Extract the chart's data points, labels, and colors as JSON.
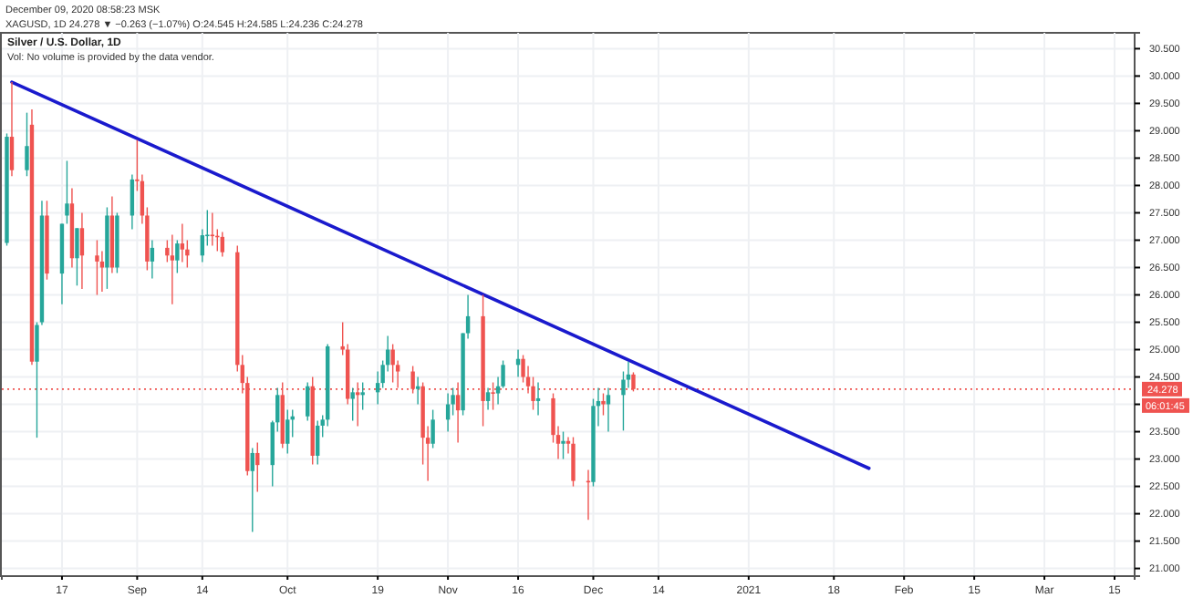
{
  "chart_data": {
    "type": "candlestick",
    "title": "Silver / U.S. Dollar, 1D",
    "subtitle": "Vol: No volume is provided by the data vendor.",
    "annotations": [
      "December 09, 2020 08:58:23 MSK",
      "XAGUSD, 1D 24.278 ▼ −0.263 (−1.07%) O:24.545 H:24.585 L:24.236 C:24.278",
      "06:01:45"
    ],
    "x": [
      "2020-08-06",
      "2020-08-07",
      "2020-08-10",
      "2020-08-11",
      "2020-08-12",
      "2020-08-13",
      "2020-08-14",
      "2020-08-17",
      "2020-08-18",
      "2020-08-19",
      "2020-08-20",
      "2020-08-21",
      "2020-08-24",
      "2020-08-25",
      "2020-08-26",
      "2020-08-27",
      "2020-08-28",
      "2020-08-31",
      "2020-09-01",
      "2020-09-02",
      "2020-09-03",
      "2020-09-04",
      "2020-09-07",
      "2020-09-08",
      "2020-09-09",
      "2020-09-10",
      "2020-09-11",
      "2020-09-14",
      "2020-09-15",
      "2020-09-16",
      "2020-09-17",
      "2020-09-18",
      "2020-09-21",
      "2020-09-22",
      "2020-09-23",
      "2020-09-24",
      "2020-09-25",
      "2020-09-28",
      "2020-09-29",
      "2020-09-30",
      "2020-10-01",
      "2020-10-02",
      "2020-10-05",
      "2020-10-06",
      "2020-10-07",
      "2020-10-08",
      "2020-10-09",
      "2020-10-12",
      "2020-10-13",
      "2020-10-14",
      "2020-10-15",
      "2020-10-16",
      "2020-10-19",
      "2020-10-20",
      "2020-10-21",
      "2020-10-22",
      "2020-10-23",
      "2020-10-26",
      "2020-10-27",
      "2020-10-28",
      "2020-10-29",
      "2020-10-30",
      "2020-11-02",
      "2020-11-03",
      "2020-11-04",
      "2020-11-05",
      "2020-11-06",
      "2020-11-09",
      "2020-11-10",
      "2020-11-11",
      "2020-11-12",
      "2020-11-13",
      "2020-11-16",
      "2020-11-17",
      "2020-11-18",
      "2020-11-19",
      "2020-11-20",
      "2020-11-23",
      "2020-11-24",
      "2020-11-25",
      "2020-11-26",
      "2020-11-27",
      "2020-11-30",
      "2020-12-01",
      "2020-12-02",
      "2020-12-03",
      "2020-12-04",
      "2020-12-07",
      "2020-12-08",
      "2020-12-09"
    ],
    "ohlc": [
      [
        26.95,
        28.95,
        26.9,
        28.89
      ],
      [
        28.89,
        29.89,
        28.17,
        28.28
      ],
      [
        28.28,
        29.33,
        28.17,
        28.72
      ],
      [
        29.11,
        29.39,
        24.72,
        24.78
      ],
      [
        24.78,
        25.5,
        23.39,
        25.45
      ],
      [
        25.5,
        27.72,
        25.45,
        27.45
      ],
      [
        27.45,
        27.72,
        26.28,
        26.39
      ],
      [
        26.39,
        27.3,
        25.83,
        27.3
      ],
      [
        27.45,
        28.45,
        27.3,
        27.67
      ],
      [
        27.67,
        27.95,
        26.5,
        26.67
      ],
      [
        26.67,
        27.22,
        26.17,
        27.22
      ],
      [
        27.22,
        27.5,
        26.11,
        26.72
      ],
      [
        26.72,
        27.0,
        26.0,
        26.61
      ],
      [
        26.61,
        26.8,
        26.06,
        26.5
      ],
      [
        26.5,
        27.6,
        26.11,
        27.45
      ],
      [
        27.45,
        27.8,
        26.4,
        26.5
      ],
      [
        26.5,
        27.5,
        26.4,
        27.45
      ],
      [
        27.45,
        28.2,
        27.2,
        28.11
      ],
      [
        28.11,
        28.83,
        27.9,
        28.08
      ],
      [
        28.08,
        28.2,
        27.3,
        27.45
      ],
      [
        27.45,
        27.6,
        26.45,
        26.61
      ],
      [
        26.61,
        27.0,
        26.3,
        26.86
      ],
      [
        26.86,
        27.0,
        26.6,
        26.72
      ],
      [
        26.72,
        27.1,
        25.83,
        26.63
      ],
      [
        26.63,
        27.0,
        26.4,
        26.94
      ],
      [
        26.94,
        27.3,
        26.6,
        26.83
      ],
      [
        26.83,
        27.0,
        26.5,
        26.72
      ],
      [
        26.72,
        27.2,
        26.6,
        27.09
      ],
      [
        27.09,
        27.55,
        26.9,
        27.1
      ],
      [
        27.1,
        27.5,
        26.9,
        27.08
      ],
      [
        27.08,
        27.2,
        26.8,
        27.06
      ],
      [
        27.06,
        27.15,
        26.7,
        26.78
      ],
      [
        26.78,
        26.9,
        24.6,
        24.72
      ],
      [
        24.72,
        24.9,
        24.2,
        24.39
      ],
      [
        24.39,
        24.5,
        22.7,
        22.78
      ],
      [
        22.78,
        23.2,
        21.67,
        23.11
      ],
      [
        23.11,
        23.3,
        22.4,
        22.89
      ],
      [
        22.89,
        23.7,
        22.5,
        23.67
      ],
      [
        23.67,
        24.3,
        23.5,
        24.17
      ],
      [
        24.17,
        24.4,
        23.2,
        23.28
      ],
      [
        23.28,
        23.9,
        23.1,
        23.72
      ],
      [
        23.72,
        23.9,
        23.4,
        23.78
      ],
      [
        23.78,
        24.4,
        23.7,
        24.33
      ],
      [
        24.33,
        24.5,
        22.9,
        23.06
      ],
      [
        23.06,
        23.7,
        22.9,
        23.61
      ],
      [
        23.61,
        23.8,
        23.4,
        23.72
      ],
      [
        23.72,
        25.1,
        23.6,
        25.06
      ],
      [
        25.06,
        25.5,
        24.9,
        25.0
      ],
      [
        25.0,
        25.1,
        24.0,
        24.1
      ],
      [
        24.1,
        24.3,
        23.7,
        24.22
      ],
      [
        24.22,
        24.4,
        23.6,
        24.17
      ],
      [
        24.17,
        24.4,
        23.9,
        24.22
      ],
      [
        24.22,
        24.6,
        24.0,
        24.39
      ],
      [
        24.39,
        24.8,
        24.3,
        24.72
      ],
      [
        24.72,
        25.25,
        24.6,
        25.0
      ],
      [
        25.0,
        25.1,
        24.4,
        24.72
      ],
      [
        24.72,
        24.8,
        24.3,
        24.6
      ],
      [
        24.6,
        24.7,
        24.2,
        24.28
      ],
      [
        24.28,
        24.5,
        24.0,
        24.33
      ],
      [
        24.33,
        24.4,
        22.9,
        23.39
      ],
      [
        23.39,
        23.6,
        22.6,
        23.28
      ],
      [
        23.28,
        23.9,
        23.2,
        23.72
      ],
      [
        23.72,
        24.2,
        23.5,
        24.0
      ],
      [
        24.0,
        24.3,
        23.8,
        24.17
      ],
      [
        24.17,
        24.4,
        23.3,
        23.89
      ],
      [
        23.89,
        25.3,
        23.8,
        25.3
      ],
      [
        25.3,
        26.0,
        25.2,
        25.61
      ],
      [
        25.61,
        26.0,
        23.6,
        24.06
      ],
      [
        24.06,
        24.3,
        23.9,
        24.22
      ],
      [
        24.22,
        24.4,
        23.9,
        24.2
      ],
      [
        24.2,
        24.5,
        24.0,
        24.33
      ],
      [
        24.33,
        24.8,
        24.3,
        24.72
      ],
      [
        24.72,
        25.0,
        24.5,
        24.83
      ],
      [
        24.83,
        24.9,
        24.4,
        24.5
      ],
      [
        24.5,
        24.7,
        24.2,
        24.33
      ],
      [
        24.33,
        24.5,
        23.9,
        24.06
      ],
      [
        24.06,
        24.4,
        23.8,
        24.11
      ],
      [
        24.11,
        24.2,
        23.3,
        23.44
      ],
      [
        23.44,
        23.6,
        23.0,
        23.28
      ],
      [
        23.28,
        23.5,
        23.0,
        23.33
      ],
      [
        23.33,
        23.4,
        23.1,
        23.28
      ],
      [
        23.28,
        23.4,
        22.5,
        22.6
      ],
      [
        22.6,
        22.8,
        21.89,
        22.58
      ],
      [
        22.58,
        24.1,
        22.5,
        23.97
      ],
      [
        23.97,
        24.3,
        23.6,
        24.06
      ],
      [
        24.06,
        24.2,
        23.8,
        24.0
      ],
      [
        24.0,
        24.3,
        23.5,
        24.17
      ],
      [
        24.17,
        24.6,
        23.52,
        24.45
      ],
      [
        24.45,
        24.78,
        24.3,
        24.545
      ],
      [
        24.545,
        24.585,
        24.236,
        24.278
      ]
    ],
    "colors": [
      "#26a69a",
      "#ef5350",
      "#26a69a",
      "#ef5350",
      "#26a69a",
      "#26a69a",
      "#ef5350",
      "#26a69a",
      "#26a69a",
      "#ef5350",
      "#26a69a",
      "#ef5350",
      "#ef5350",
      "#ef5350",
      "#26a69a",
      "#ef5350",
      "#26a69a",
      "#26a69a",
      "#ef5350",
      "#ef5350",
      "#ef5350",
      "#26a69a",
      "#ef5350",
      "#ef5350",
      "#26a69a",
      "#ef5350",
      "#ef5350",
      "#26a69a",
      "#26a69a",
      "#ef5350",
      "#ef5350",
      "#ef5350",
      "#ef5350",
      "#ef5350",
      "#ef5350",
      "#26a69a",
      "#ef5350",
      "#26a69a",
      "#26a69a",
      "#ef5350",
      "#26a69a",
      "#26a69a",
      "#26a69a",
      "#ef5350",
      "#26a69a",
      "#26a69a",
      "#26a69a",
      "#ef5350",
      "#ef5350",
      "#26a69a",
      "#ef5350",
      "#26a69a",
      "#26a69a",
      "#26a69a",
      "#26a69a",
      "#ef5350",
      "#ef5350",
      "#ef5350",
      "#26a69a",
      "#ef5350",
      "#ef5350",
      "#26a69a",
      "#26a69a",
      "#26a69a",
      "#ef5350",
      "#26a69a",
      "#26a69a",
      "#ef5350",
      "#26a69a",
      "#ef5350",
      "#26a69a",
      "#26a69a",
      "#26a69a",
      "#ef5350",
      "#ef5350",
      "#ef5350",
      "#26a69a",
      "#ef5350",
      "#ef5350",
      "#26a69a",
      "#ef5350",
      "#ef5350",
      "#ef5350",
      "#26a69a",
      "#26a69a",
      "#ef5350",
      "#26a69a",
      "#26a69a",
      "#26a69a",
      "#ef5350"
    ],
    "series": [
      {
        "type": "line",
        "x": [
          "2020-08-07",
          "2021-01-25"
        ],
        "values": [
          29.89,
          22.83
        ],
        "color": "#1a1acd"
      }
    ],
    "xlim": [
      "2020-08-05",
      "2021-03-19"
    ],
    "xticks": [
      {
        "value": "2020-08-17",
        "label": "17"
      },
      {
        "value": "2020-09-01",
        "label": "Sep"
      },
      {
        "value": "2020-09-14",
        "label": "14"
      },
      {
        "value": "2020-10-01",
        "label": "Oct"
      },
      {
        "value": "2020-10-19",
        "label": "19"
      },
      {
        "value": "2020-11-02",
        "label": "Nov"
      },
      {
        "value": "2020-11-16",
        "label": "16"
      },
      {
        "value": "2020-12-01",
        "label": "Dec"
      },
      {
        "value": "2020-12-14",
        "label": "14"
      },
      {
        "value": "2021-01-01",
        "label": "2021"
      },
      {
        "value": "2021-01-18",
        "label": "18"
      },
      {
        "value": "2021-02-01",
        "label": "Feb"
      },
      {
        "value": "2021-02-15",
        "label": "15"
      },
      {
        "value": "2021-03-01",
        "label": "Mar"
      },
      {
        "value": "2021-03-15",
        "label": "15"
      }
    ],
    "ylim": [
      20.86,
      30.79
    ],
    "yticks": [
      {
        "value": 21,
        "label": "21.000"
      },
      {
        "value": 21.5,
        "label": "21.500"
      },
      {
        "value": 22,
        "label": "22.000"
      },
      {
        "value": 22.5,
        "label": "22.500"
      },
      {
        "value": 23,
        "label": "23.000"
      },
      {
        "value": 23.5,
        "label": "23.500"
      },
      {
        "value": 24,
        "label": null
      },
      {
        "value": 24.5,
        "label": "24.500"
      },
      {
        "value": 25,
        "label": "25.000"
      },
      {
        "value": 25.5,
        "label": "25.500"
      },
      {
        "value": 26,
        "label": "26.000"
      },
      {
        "value": 26.5,
        "label": "26.500"
      },
      {
        "value": 27,
        "label": "27.000"
      },
      {
        "value": 27.5,
        "label": "27.500"
      },
      {
        "value": 28,
        "label": "28.000"
      },
      {
        "value": 28.5,
        "label": "28.500"
      },
      {
        "value": 29,
        "label": "29.000"
      },
      {
        "value": 29.5,
        "label": "29.500"
      },
      {
        "value": 30,
        "label": "30.000"
      },
      {
        "value": 30.5,
        "label": "30.500"
      }
    ],
    "grid": true,
    "ref_lines": [
      {
        "axis": "y",
        "value": 24.278,
        "label": "24.278",
        "color": "#ef5350",
        "line_style": "dotted"
      }
    ]
  }
}
